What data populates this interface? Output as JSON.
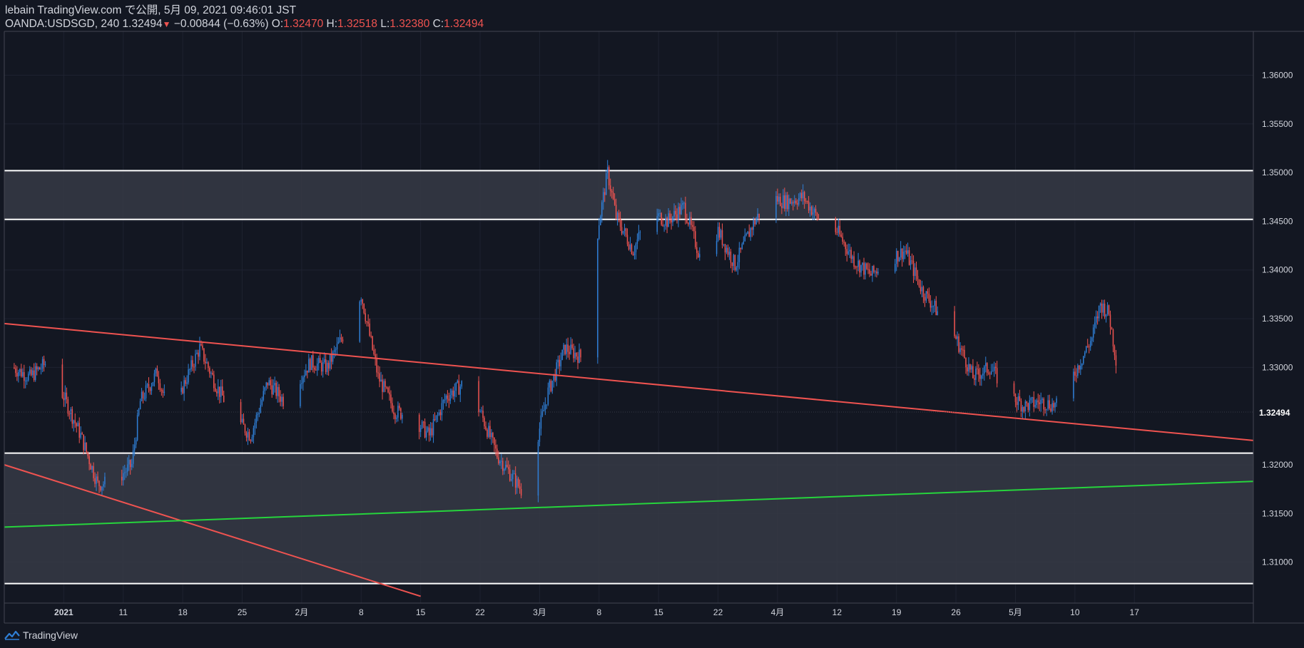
{
  "header": {
    "publish_line": "lebain TradingView.com で公開, 5月 09, 2021 09:46:01 JST",
    "symbol": "OANDA:USDSGD, 240",
    "last_price": "1.32494",
    "change_arrow": "▼",
    "change": "−0.00844 (−0.63%)",
    "o_label": "O:",
    "o_value": "1.32470",
    "h_label": "H:",
    "h_value": "1.32518",
    "l_label": "L:",
    "l_value": "1.32380",
    "c_label": "C:",
    "c_value": "1.32494"
  },
  "footer": {
    "brand": "TradingView",
    "logo_icon": "tradingview-logo-icon"
  },
  "colors": {
    "background": "#131722",
    "grid": "#1e2230",
    "up": "#2f7fd6",
    "down": "#ef5350",
    "zone_fill": "#363a45",
    "zone_line": "#ffffff",
    "trend_red": "#ef5350",
    "trend_green": "#26d43c",
    "axis_text": "#d1d4dc"
  },
  "chart_data": {
    "type": "candlestick",
    "timeframe": "240",
    "x_ticks": [
      "2021",
      "11",
      "18",
      "25",
      "2月",
      "8",
      "15",
      "22",
      "3月",
      "8",
      "15",
      "22",
      "4月",
      "12",
      "19",
      "26",
      "5月",
      "10",
      "17"
    ],
    "y_ticks": [
      "1.36000",
      "1.35500",
      "1.35000",
      "1.34500",
      "1.34000",
      "1.33500",
      "1.33000",
      "1.32000",
      "1.31500",
      "1.31000"
    ],
    "ylim": [
      1.3058,
      1.3645
    ],
    "last_price_label": "1.32494",
    "close_path": [
      [
        "2020-12-29",
        1.33
      ],
      [
        "2020-12-31",
        1.329
      ],
      [
        "2021-01-02",
        1.3305
      ],
      [
        "2021-01-04",
        1.327
      ],
      [
        "2021-01-06",
        1.323
      ],
      [
        "2021-01-08",
        1.318
      ],
      [
        "2021-01-10",
        1.3183
      ],
      [
        "2021-01-12",
        1.32
      ],
      [
        "2021-01-13",
        1.3265
      ],
      [
        "2021-01-15",
        1.3295
      ],
      [
        "2021-01-17",
        1.3232
      ],
      [
        "2021-01-18",
        1.328
      ],
      [
        "2021-01-20",
        1.332
      ],
      [
        "2021-01-22",
        1.328
      ],
      [
        "2021-01-24",
        1.325
      ],
      [
        "2021-01-26",
        1.323
      ],
      [
        "2021-01-28",
        1.3285
      ],
      [
        "2021-01-30",
        1.3265
      ],
      [
        "2021-02-02",
        1.3305
      ],
      [
        "2021-02-04",
        1.33
      ],
      [
        "2021-02-06",
        1.3335
      ],
      [
        "2021-02-08",
        1.3375
      ],
      [
        "2021-02-10",
        1.329
      ],
      [
        "2021-02-12",
        1.3255
      ],
      [
        "2021-02-14",
        1.325
      ],
      [
        "2021-02-16",
        1.323
      ],
      [
        "2021-02-18",
        1.327
      ],
      [
        "2021-02-20",
        1.3283
      ],
      [
        "2021-02-22",
        1.3255
      ],
      [
        "2021-02-24",
        1.321
      ],
      [
        "2021-02-26",
        1.3185
      ],
      [
        "2021-02-27",
        1.3172
      ],
      [
        "2021-02-28",
        1.32
      ],
      [
        "2021-03-02",
        1.3275
      ],
      [
        "2021-03-04",
        1.332
      ],
      [
        "2021-03-06",
        1.331
      ],
      [
        "2021-03-07",
        1.338
      ],
      [
        "2021-03-08",
        1.345
      ],
      [
        "2021-03-09",
        1.35
      ],
      [
        "2021-03-10",
        1.3455
      ],
      [
        "2021-03-12",
        1.342
      ],
      [
        "2021-03-14",
        1.346
      ],
      [
        "2021-03-16",
        1.345
      ],
      [
        "2021-03-18",
        1.3465
      ],
      [
        "2021-03-20",
        1.341
      ],
      [
        "2021-03-22",
        1.344
      ],
      [
        "2021-03-24",
        1.3405
      ],
      [
        "2021-03-26",
        1.3445
      ],
      [
        "2021-03-28",
        1.3475
      ],
      [
        "2021-03-30",
        1.347
      ],
      [
        "2021-04-01",
        1.3475
      ],
      [
        "2021-04-03",
        1.345
      ],
      [
        "2021-04-05",
        1.344
      ],
      [
        "2021-04-07",
        1.341
      ],
      [
        "2021-04-09",
        1.3395
      ],
      [
        "2021-04-11",
        1.341
      ],
      [
        "2021-04-13",
        1.342
      ],
      [
        "2021-04-15",
        1.338
      ],
      [
        "2021-04-17",
        1.3355
      ],
      [
        "2021-04-19",
        1.333
      ],
      [
        "2021-04-21",
        1.329
      ],
      [
        "2021-04-23",
        1.33
      ],
      [
        "2021-04-25",
        1.3275
      ],
      [
        "2021-04-27",
        1.326
      ],
      [
        "2021-04-29",
        1.3265
      ],
      [
        "2021-05-01",
        1.326
      ],
      [
        "2021-05-03",
        1.3295
      ],
      [
        "2021-05-05",
        1.333
      ],
      [
        "2021-05-06",
        1.3365
      ],
      [
        "2021-05-07",
        1.3355
      ],
      [
        "2021-05-08",
        1.33
      ],
      [
        "2021-05-09",
        1.3249
      ]
    ],
    "horizontal_zones": [
      {
        "top": 1.3502,
        "bottom": 1.3452
      },
      {
        "top": 1.3212,
        "bottom": 1.3078
      }
    ],
    "trend_lines": [
      {
        "color": "red",
        "from": [
          "2020-12-28",
          1.3345
        ],
        "to": [
          "2021-05-24",
          1.3225
        ],
        "through": [
          [
            "2021-01-03",
            1.32
          ],
          [
            "2021-03-20",
            1.3502
          ],
          [
            "2021-04-07",
            1.3464
          ]
        ]
      },
      {
        "color": "red",
        "from": [
          "2020-12-28",
          1.32
        ],
        "to": [
          "2021-02-15",
          1.3065
        ]
      },
      {
        "color": "green",
        "from": [
          "2020-12-28",
          1.3136
        ],
        "to": [
          "2021-05-24",
          1.3183
        ]
      }
    ]
  }
}
